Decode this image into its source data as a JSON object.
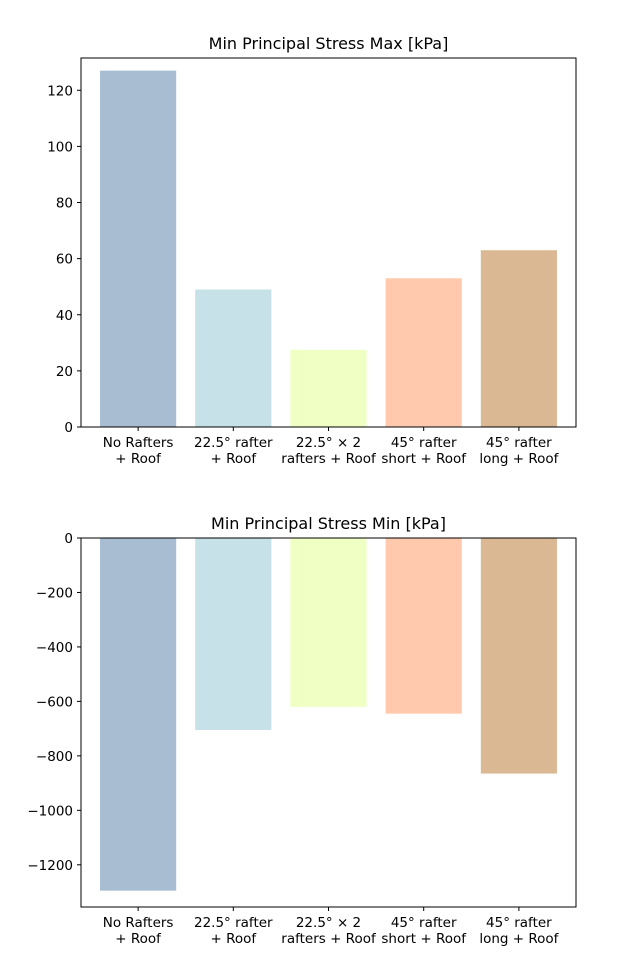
{
  "chart_data": [
    {
      "type": "bar",
      "title": "Min Principal Stress Max [kPa]",
      "xlabel": "",
      "ylabel": "",
      "categories": [
        [
          "No Rafters",
          "+ Roof"
        ],
        [
          "22.5° rafter",
          "+ Roof"
        ],
        [
          "22.5° × 2",
          "rafters + Roof"
        ],
        [
          "45° rafter",
          "short + Roof"
        ],
        [
          "45° rafter",
          "long + Roof"
        ]
      ],
      "values": [
        127,
        49,
        27.5,
        53,
        63
      ],
      "colors": [
        "#a8bdd2",
        "#c6e2e8",
        "#f0ffc3",
        "#ffc9ae",
        "#dbb894"
      ],
      "ylim": [
        0,
        131.5
      ],
      "yticks": [
        0,
        20,
        40,
        60,
        80,
        100,
        120
      ],
      "ytick_labels": [
        "0",
        "20",
        "40",
        "60",
        "80",
        "100",
        "120"
      ],
      "grid": false
    },
    {
      "type": "bar",
      "title": "Min Principal Stress Min [kPa]",
      "xlabel": "",
      "ylabel": "",
      "categories": [
        [
          "No Rafters",
          "+ Roof"
        ],
        [
          "22.5° rafter",
          "+ Roof"
        ],
        [
          "22.5° × 2",
          "rafters + Roof"
        ],
        [
          "45° rafter",
          "short + Roof"
        ],
        [
          "45° rafter",
          "long + Roof"
        ]
      ],
      "values": [
        -1295,
        -705,
        -620,
        -645,
        -865
      ],
      "colors": [
        "#a8bdd2",
        "#c6e2e8",
        "#f0ffc3",
        "#ffc9ae",
        "#dbb894"
      ],
      "ylim": [
        -1355,
        0
      ],
      "yticks": [
        0,
        -200,
        -400,
        -600,
        -800,
        -1000,
        -1200
      ],
      "ytick_labels": [
        "0",
        "−200",
        "−400",
        "−600",
        "−800",
        "−1000",
        "−1200"
      ],
      "grid": false
    }
  ]
}
